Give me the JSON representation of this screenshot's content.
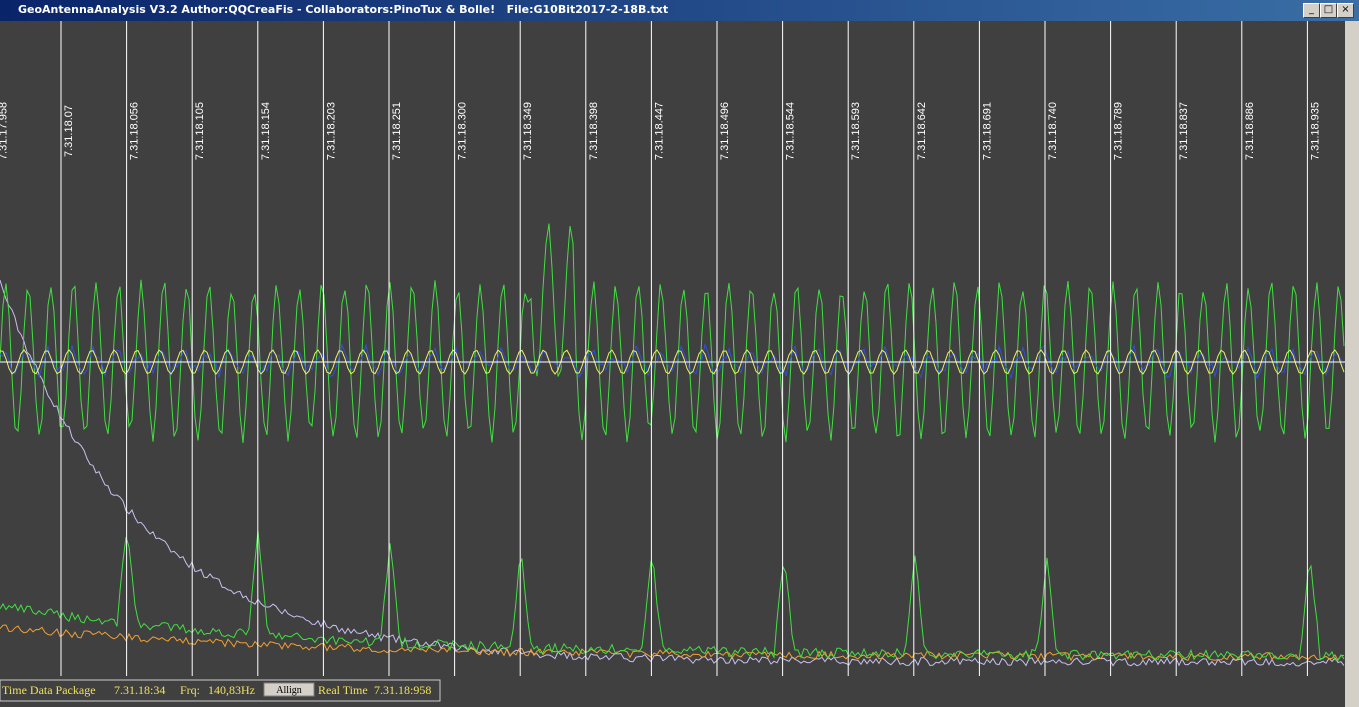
{
  "window": {
    "title": "GeoAntennaAnalysis V3.2 Author:QQCreaFis - Collaborators:PinoTux & Bolle!   File:G10Bit2017-2-18B.txt"
  },
  "time_markers": [
    "7.31.17.958",
    "7.31.18.07",
    "7.31.18.056",
    "7.31.18.105",
    "7.31.18.154",
    "7.31.18.203",
    "7.31.18.251",
    "7.31.18.300",
    "7.31.18.349",
    "7.31.18.398",
    "7.31.18.447",
    "7.31.18.496",
    "7.31.18.544",
    "7.31.18.593",
    "7.31.18.642",
    "7.31.18.691",
    "7.31.18.740",
    "7.31.18.789",
    "7.31.18.837",
    "7.31.18.886",
    "7.31.18.935"
  ],
  "status_bar": {
    "package_label": "Time Data Package",
    "package_time": "7.31.18:34",
    "frequency_label": "Frq:",
    "frequency": "140,83Hz",
    "button": "Allign",
    "real_time_label": "Real Time",
    "real_time": "7.31.18:958"
  }
}
